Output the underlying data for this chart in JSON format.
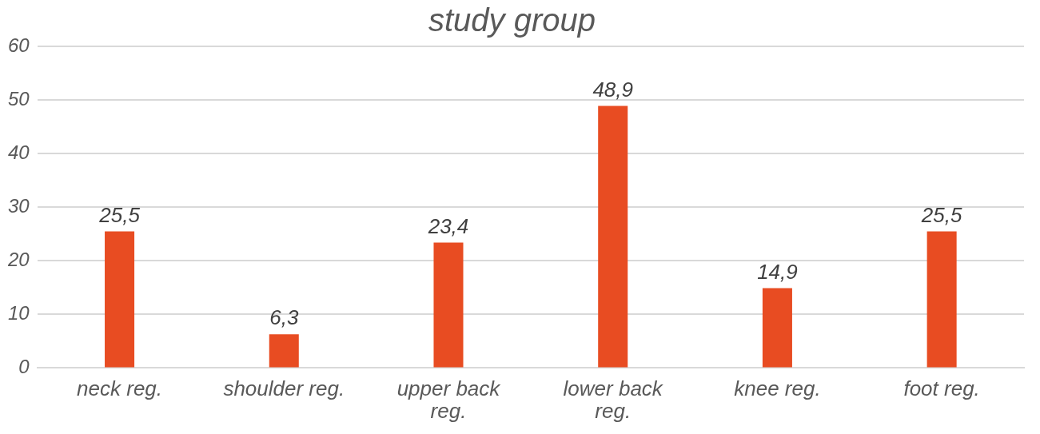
{
  "chart_data": {
    "type": "bar",
    "title": "study group",
    "categories": [
      "neck reg.",
      "shoulder reg.",
      "upper back reg.",
      "lower back reg.",
      "knee reg.",
      "foot reg."
    ],
    "values": [
      25.5,
      6.3,
      23.4,
      48.9,
      14.9,
      25.5
    ],
    "color": "#e84c22",
    "ylim": [
      0,
      60
    ],
    "yticks": [
      0,
      10,
      20,
      30,
      40,
      50,
      60
    ],
    "grid": "y",
    "legend": false,
    "value_labels": [
      "25,5",
      "6,3",
      "23,4",
      "48,9",
      "14,9",
      "25,5"
    ]
  }
}
